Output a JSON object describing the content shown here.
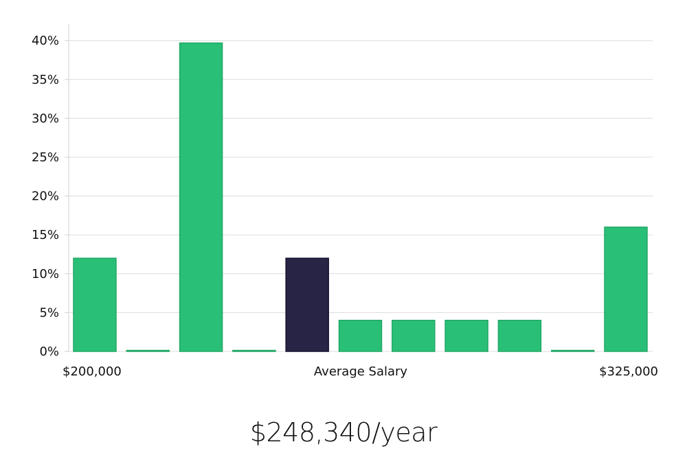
{
  "chart_data": {
    "type": "bar",
    "values": [
      12,
      0,
      39.7,
      0,
      12,
      4,
      4,
      4,
      4,
      0,
      16
    ],
    "highlight_index": 4,
    "ylim": [
      0,
      42
    ],
    "y_ticks": [
      0,
      5,
      10,
      15,
      20,
      25,
      30,
      35,
      40
    ],
    "y_tick_labels": [
      "0%",
      "5%",
      "10%",
      "15%",
      "20%",
      "25%",
      "30%",
      "35%",
      "40%"
    ],
    "x_labels": {
      "left": "$200,000",
      "center": "Average Salary",
      "right": "$325,000"
    },
    "grid": true,
    "colors": {
      "bar": "#2abf77",
      "bar_edge": "#22a866",
      "highlight": "#282445",
      "highlight_edge": "#15122e",
      "grid": "#dcdcdc",
      "axis": "#cfcfcf"
    }
  },
  "salary_text": "$248,340/year"
}
